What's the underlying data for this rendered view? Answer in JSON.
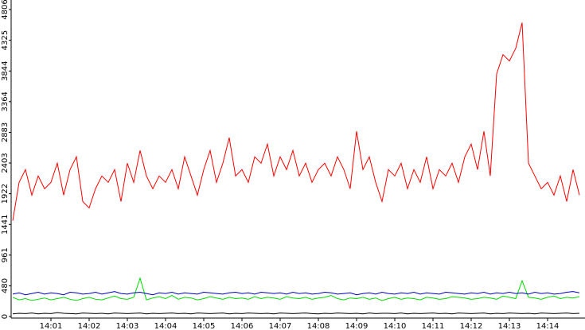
{
  "chart_data": {
    "type": "line",
    "categories": [
      null,
      null,
      null,
      null,
      null,
      null,
      "14:01",
      null,
      null,
      null,
      null,
      null,
      "14:02",
      null,
      null,
      null,
      null,
      null,
      "14:03",
      null,
      null,
      null,
      null,
      null,
      "14:04",
      null,
      null,
      null,
      null,
      null,
      "14:05",
      null,
      null,
      null,
      null,
      null,
      "14:06",
      null,
      null,
      null,
      null,
      null,
      "14:07",
      null,
      null,
      null,
      null,
      null,
      "14:08",
      null,
      null,
      null,
      null,
      null,
      "14:09",
      null,
      null,
      null,
      null,
      null,
      "14:10",
      null,
      null,
      null,
      null,
      null,
      "14:11",
      null,
      null,
      null,
      null,
      null,
      "14:12",
      null,
      null,
      null,
      null,
      null,
      "14:13",
      null,
      null,
      null,
      null,
      null,
      "14:14",
      null,
      null,
      null,
      null,
      null
    ],
    "series": [
      {
        "color": "#ff0000",
        "values": [
          1500,
          2100,
          2300,
          1900,
          2200,
          2000,
          2100,
          2400,
          1900,
          2300,
          2500,
          1800,
          1700,
          2000,
          2200,
          2100,
          2300,
          1800,
          2400,
          2100,
          2600,
          2200,
          2000,
          2200,
          2100,
          2300,
          2000,
          2500,
          2200,
          1900,
          2300,
          2600,
          2100,
          2400,
          2800,
          2200,
          2300,
          2100,
          2500,
          2400,
          2700,
          2200,
          2500,
          2300,
          2600,
          2200,
          2400,
          2100,
          2300,
          2400,
          2200,
          2500,
          2300,
          2000,
          2900,
          2300,
          2500,
          2100,
          1800,
          2300,
          2200,
          2400,
          2000,
          2300,
          2100,
          2500,
          2000,
          2300,
          2200,
          2400,
          2100,
          2500,
          2700,
          2300,
          2900,
          2200,
          3800,
          4100,
          4000,
          4200,
          4600,
          2400,
          2200,
          2000,
          2100,
          1900,
          2200,
          1800,
          2300,
          1900
        ]
      },
      {
        "color": "#00dd00",
        "values": [
          300,
          260,
          280,
          250,
          270,
          290,
          260,
          280,
          300,
          270,
          250,
          280,
          300,
          270,
          260,
          290,
          320,
          280,
          270,
          300,
          600,
          260,
          290,
          310,
          280,
          330,
          270,
          300,
          290,
          260,
          280,
          310,
          290,
          270,
          300,
          280,
          290,
          270,
          310,
          280,
          300,
          290,
          270,
          310,
          290,
          280,
          300,
          270,
          290,
          300,
          330,
          280,
          260,
          290,
          280,
          300,
          270,
          290,
          250,
          280,
          300,
          270,
          290,
          280,
          260,
          300,
          290,
          270,
          280,
          310,
          300,
          290,
          270,
          280,
          300,
          290,
          270,
          320,
          300,
          280,
          560,
          300,
          290,
          270,
          300,
          320,
          280,
          300,
          290,
          310
        ]
      },
      {
        "color": "#0000bb",
        "values": [
          350,
          370,
          340,
          360,
          380,
          350,
          370,
          360,
          340,
          380,
          370,
          350,
          360,
          380,
          350,
          370,
          390,
          360,
          350,
          370,
          380,
          360,
          340,
          370,
          360,
          380,
          350,
          370,
          360,
          350,
          380,
          370,
          360,
          350,
          370,
          380,
          360,
          370,
          350,
          380,
          370,
          360,
          370,
          350,
          380,
          360,
          370,
          350,
          360,
          380,
          370,
          350,
          360,
          370,
          340,
          360,
          370,
          350,
          380,
          360,
          350,
          370,
          360,
          380,
          350,
          370,
          360,
          350,
          380,
          370,
          360,
          350,
          370,
          360,
          380,
          350,
          370,
          360,
          380,
          360,
          370,
          350,
          380,
          360,
          370,
          350,
          360,
          380,
          390,
          370
        ]
      },
      {
        "color": "#000000",
        "values": [
          40,
          50,
          45,
          55,
          40,
          50,
          45,
          60,
          50,
          45,
          40,
          55,
          50,
          45,
          50,
          40,
          55,
          50,
          45,
          50,
          55,
          40,
          50,
          45,
          50,
          55,
          45,
          50,
          40,
          55,
          50,
          45,
          50,
          55,
          40,
          50,
          45,
          55,
          50,
          45,
          50,
          40,
          55,
          50,
          45,
          50,
          55,
          45,
          40,
          50,
          45,
          55,
          50,
          45,
          50,
          40,
          55,
          45,
          50,
          50,
          45,
          55,
          40,
          50,
          45,
          50,
          55,
          45,
          50,
          40,
          55,
          50,
          45,
          50,
          55,
          40,
          50,
          45,
          55,
          50,
          45,
          50,
          40,
          55,
          50,
          45,
          50,
          55,
          45,
          50
        ]
      }
    ],
    "ylim": [
      0,
      4806
    ],
    "yticks": [
      0,
      480,
      961,
      1441,
      1922,
      2403,
      2883,
      3364,
      3844,
      4325,
      4806
    ]
  }
}
